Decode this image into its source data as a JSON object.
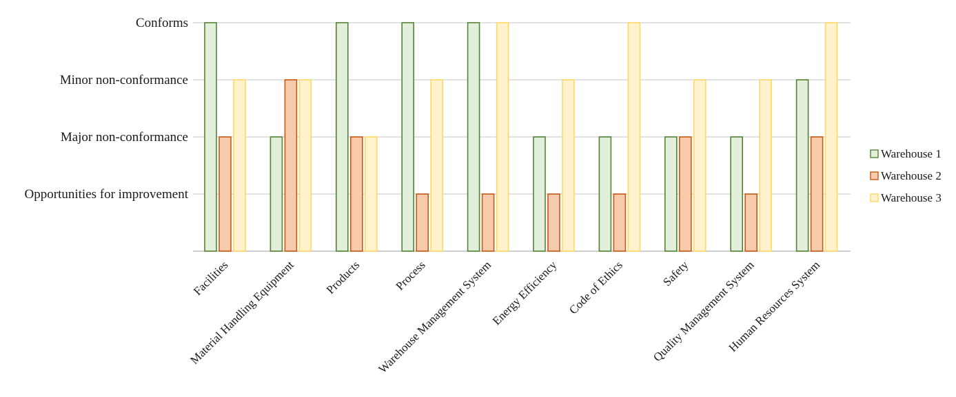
{
  "chart_data": {
    "type": "bar",
    "title": "",
    "xlabel": "",
    "ylabel": "",
    "y_levels": [
      "Opportunities for improvement",
      "Major non-conformance",
      "Minor non-conformance",
      "Conforms"
    ],
    "ylim": [
      0,
      4
    ],
    "categories": [
      "Facilities",
      "Material Handling Equipment",
      "Products",
      "Process",
      "Warehouse Management System",
      "Energy Efficiency",
      "Code of Ethics",
      "Safety",
      "Quality Management System",
      "Human Resources System"
    ],
    "series": [
      {
        "name": "Warehouse 1",
        "fill": "#e2efda",
        "stroke": "#548235",
        "values": [
          4,
          2,
          4,
          4,
          4,
          2,
          2,
          2,
          2,
          3
        ]
      },
      {
        "name": "Warehouse 2",
        "fill": "#f8cbad",
        "stroke": "#c55a11",
        "values": [
          2,
          3,
          2,
          1,
          1,
          1,
          1,
          2,
          1,
          2
        ]
      },
      {
        "name": "Warehouse 3",
        "fill": "#fff2cc",
        "stroke": "#ffd966",
        "values": [
          3,
          3,
          2,
          3,
          4,
          3,
          4,
          3,
          3,
          4
        ]
      }
    ],
    "grid": true,
    "legend_position": "right",
    "gridline_color": "#d9d9d9",
    "axis_color": "#bfbfbf"
  }
}
